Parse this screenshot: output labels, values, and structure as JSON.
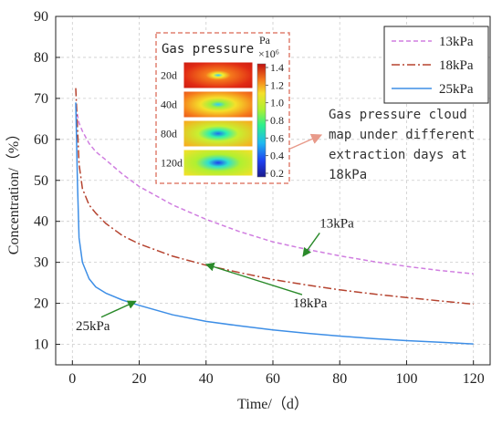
{
  "chart_data": {
    "type": "line",
    "xlabel": "Time/（d）",
    "ylabel": "Concentration/（%）",
    "xlim": [
      -5,
      125
    ],
    "ylim": [
      5,
      90
    ],
    "xticks": [
      0,
      20,
      40,
      60,
      80,
      100,
      120
    ],
    "yticks": [
      10,
      20,
      30,
      40,
      50,
      60,
      70,
      80,
      90
    ],
    "x_tick_labels": [
      "0",
      "20",
      "40",
      "60",
      "80",
      "100",
      "120"
    ],
    "y_tick_labels": [
      "10",
      "20",
      "30",
      "40",
      "50",
      "60",
      "70",
      "80",
      "90"
    ],
    "legend_position": "top-right",
    "series": [
      {
        "name": "13kPa",
        "color": "#d07ee0",
        "style": "dashed",
        "x": [
          1,
          2,
          3,
          5,
          7,
          10,
          15,
          20,
          30,
          40,
          50,
          60,
          70,
          80,
          90,
          100,
          110,
          120
        ],
        "y": [
          68,
          64,
          62,
          59,
          57,
          55,
          51.5,
          48.5,
          44,
          40.5,
          37.5,
          35,
          33.2,
          31.6,
          30.2,
          29,
          28,
          27.2
        ]
      },
      {
        "name": "18kPa",
        "color": "#b5432f",
        "style": "dashdot",
        "x": [
          1,
          2,
          3,
          5,
          7,
          10,
          15,
          20,
          30,
          40,
          50,
          60,
          70,
          80,
          90,
          100,
          110,
          120
        ],
        "y": [
          72.5,
          54,
          48,
          44,
          42,
          39.5,
          36.5,
          34.5,
          31.5,
          29.3,
          27.5,
          25.8,
          24.5,
          23.3,
          22.3,
          21.4,
          20.6,
          19.8
        ]
      },
      {
        "name": "25kPa",
        "color": "#3d8ee6",
        "style": "solid",
        "x": [
          1,
          1.5,
          2,
          3,
          5,
          7,
          10,
          15,
          20,
          30,
          40,
          50,
          60,
          70,
          80,
          90,
          100,
          110,
          120
        ],
        "y": [
          69,
          50,
          36,
          30,
          26,
          24,
          22.5,
          20.8,
          19.5,
          17.2,
          15.6,
          14.5,
          13.5,
          12.7,
          12,
          11.4,
          10.9,
          10.5,
          10.1
        ]
      }
    ],
    "annotations": [
      {
        "text": "13kPa",
        "x": 74,
        "y": 38.5,
        "arrow_to": [
          69,
          31.5
        ]
      },
      {
        "text": "18kPa",
        "x": 66,
        "y": 19,
        "arrow_to": [
          40,
          29.5
        ]
      },
      {
        "text": "25kPa",
        "x": 1,
        "y": 13.5,
        "arrow_to": [
          19,
          20.5
        ]
      }
    ],
    "inset": {
      "title": "Gas pressure",
      "rows": [
        "20d",
        "40d",
        "80d",
        "120d"
      ],
      "colorbar_unit": "Pa",
      "colorbar_scale": "×10⁶",
      "colorbar_ticks": [
        "1.4",
        "1.2",
        "1.0",
        "0.8",
        "0.6",
        "0.4",
        "0.2"
      ],
      "callout_lines": [
        "Gas pressure cloud",
        "map under different",
        "extraction days at",
        "18kPa"
      ]
    }
  }
}
